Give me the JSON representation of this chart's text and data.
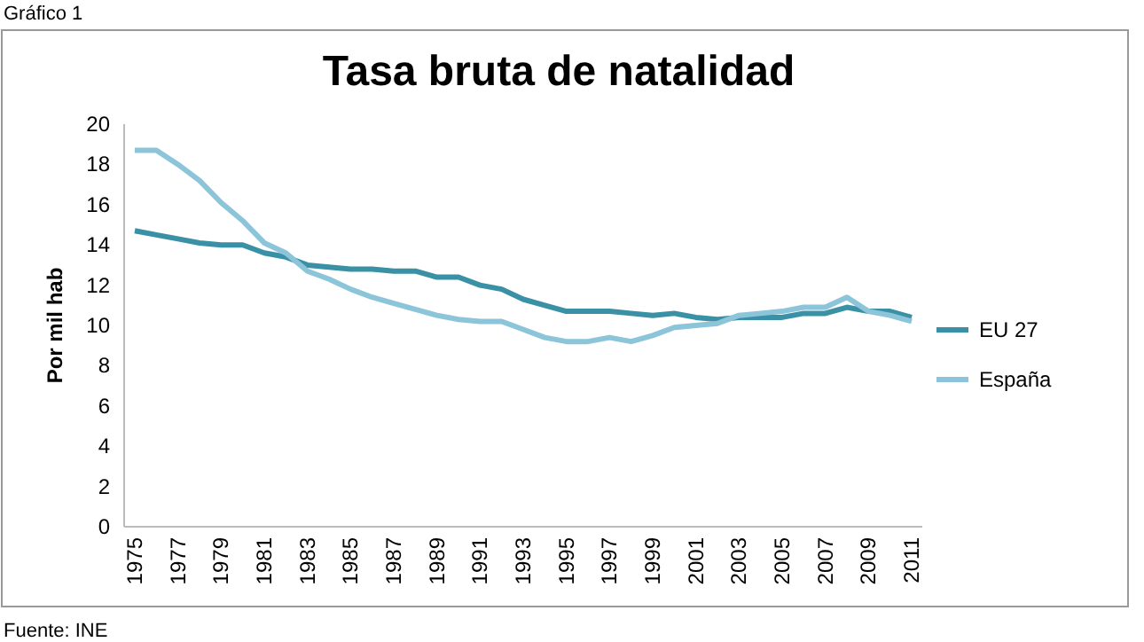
{
  "chart_data": {
    "type": "line",
    "title": "Tasa bruta de natalidad",
    "ylabel": "Por mil hab",
    "annotations": [
      "Gráfico 1",
      "Fuente: INE"
    ],
    "categories": [
      "1975",
      null,
      "1977",
      null,
      "1979",
      null,
      "1981",
      null,
      "1983",
      null,
      "1985",
      null,
      "1987",
      null,
      "1989",
      null,
      "1991",
      null,
      "1993",
      null,
      "1995",
      null,
      "1997",
      null,
      "1999",
      null,
      "2001",
      null,
      "2003",
      null,
      "2005",
      null,
      "2007",
      null,
      "2009",
      null,
      "2011"
    ],
    "series": [
      {
        "name": "EU 27",
        "color": "#3a91a5",
        "values": [
          14.7,
          14.5,
          14.3,
          14.1,
          14.0,
          14.0,
          13.6,
          13.4,
          13.0,
          12.9,
          12.8,
          12.8,
          12.7,
          12.7,
          12.4,
          12.4,
          12.0,
          11.8,
          11.3,
          11.0,
          10.7,
          10.7,
          10.7,
          10.6,
          10.5,
          10.6,
          10.4,
          10.3,
          10.4,
          10.4,
          10.4,
          10.6,
          10.6,
          10.9,
          10.7,
          10.7,
          10.4
        ]
      },
      {
        "name": "España",
        "color": "#8cc5d9",
        "values": [
          18.7,
          18.7,
          18.0,
          17.2,
          16.1,
          15.2,
          14.1,
          13.6,
          12.7,
          12.3,
          11.8,
          11.4,
          11.1,
          10.8,
          10.5,
          10.3,
          10.2,
          10.2,
          9.8,
          9.4,
          9.2,
          9.2,
          9.4,
          9.2,
          9.5,
          9.9,
          10.0,
          10.1,
          10.5,
          10.6,
          10.7,
          10.9,
          10.9,
          11.4,
          10.7,
          10.5,
          10.2
        ]
      }
    ],
    "ylim": [
      0,
      20
    ],
    "yticks": [
      0,
      2,
      4,
      6,
      8,
      10,
      12,
      14,
      16,
      18,
      20
    ],
    "grid": false,
    "legend": "right",
    "marker": "none",
    "line_style": "solid"
  }
}
